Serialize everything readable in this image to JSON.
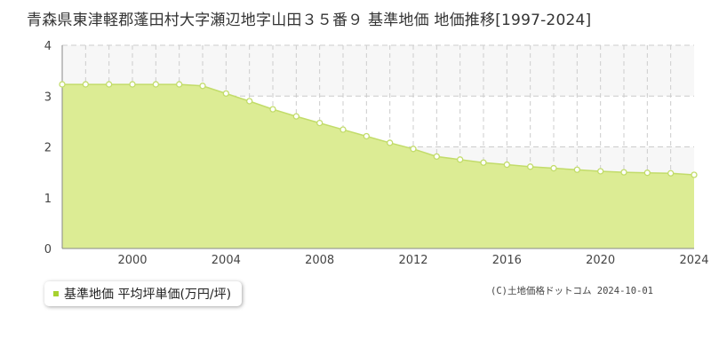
{
  "title": "青森県東津軽郡蓬田村大字瀬辺地字山田３５番９ 基準地価 地価推移[1997-2024]",
  "legend_label": "基準地価 平均坪単価(万円/坪)",
  "credit": "(C)土地価格ドットコム 2024-10-01",
  "colors": {
    "fill": "#dcec94",
    "line": "#c2dc6a",
    "marker_fill": "#ffffff",
    "swatch": "#a7d12f",
    "band": "#f7f7f7",
    "grid": "#cccccc"
  },
  "chart_data": {
    "type": "area",
    "title": "青森県東津軽郡蓬田村大字瀬辺地字山田３５番９ 基準地価 地価推移[1997-2024]",
    "xlabel": "",
    "ylabel": "",
    "xlim": [
      1997,
      2024
    ],
    "ylim": [
      0,
      4
    ],
    "y_ticks": [
      0,
      1,
      2,
      3,
      4
    ],
    "x_ticks": [
      2000,
      2004,
      2008,
      2012,
      2016,
      2020,
      2024
    ],
    "grid": true,
    "legend": "bottom-left",
    "series": [
      {
        "name": "基準地価 平均坪単価(万円/坪)",
        "x": [
          1997,
          1998,
          1999,
          2000,
          2001,
          2002,
          2003,
          2004,
          2005,
          2006,
          2007,
          2008,
          2009,
          2010,
          2011,
          2012,
          2013,
          2014,
          2015,
          2016,
          2017,
          2018,
          2019,
          2020,
          2021,
          2022,
          2023,
          2024
        ],
        "values": [
          3.23,
          3.23,
          3.23,
          3.23,
          3.23,
          3.23,
          3.2,
          3.05,
          2.9,
          2.74,
          2.6,
          2.47,
          2.34,
          2.21,
          2.08,
          1.96,
          1.81,
          1.75,
          1.69,
          1.65,
          1.61,
          1.58,
          1.55,
          1.52,
          1.5,
          1.49,
          1.48,
          1.45
        ]
      }
    ]
  }
}
